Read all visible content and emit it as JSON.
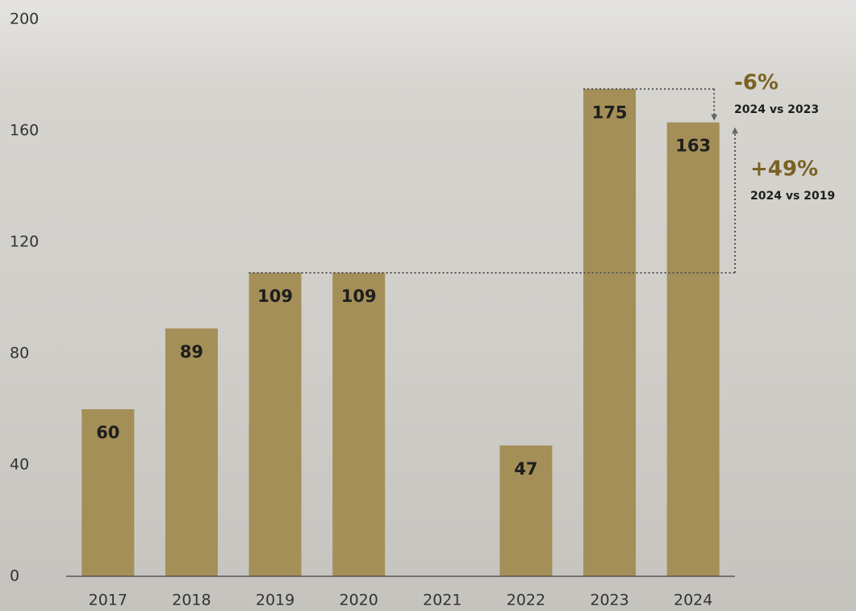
{
  "chart_data": {
    "type": "bar",
    "categories": [
      "2017",
      "2018",
      "2019",
      "2020",
      "2021",
      "2022",
      "2023",
      "2024"
    ],
    "values": [
      60,
      89,
      109,
      109,
      null,
      47,
      175,
      163
    ],
    "color": "#a48f58",
    "ylim": [
      0,
      200
    ],
    "yticks": [
      0,
      40,
      80,
      120,
      160,
      200
    ],
    "annotations": [
      {
        "text": "-6%",
        "subtext": "2024 vs 2023"
      },
      {
        "text": "+49%",
        "subtext": "2024 vs 2019"
      }
    ]
  }
}
